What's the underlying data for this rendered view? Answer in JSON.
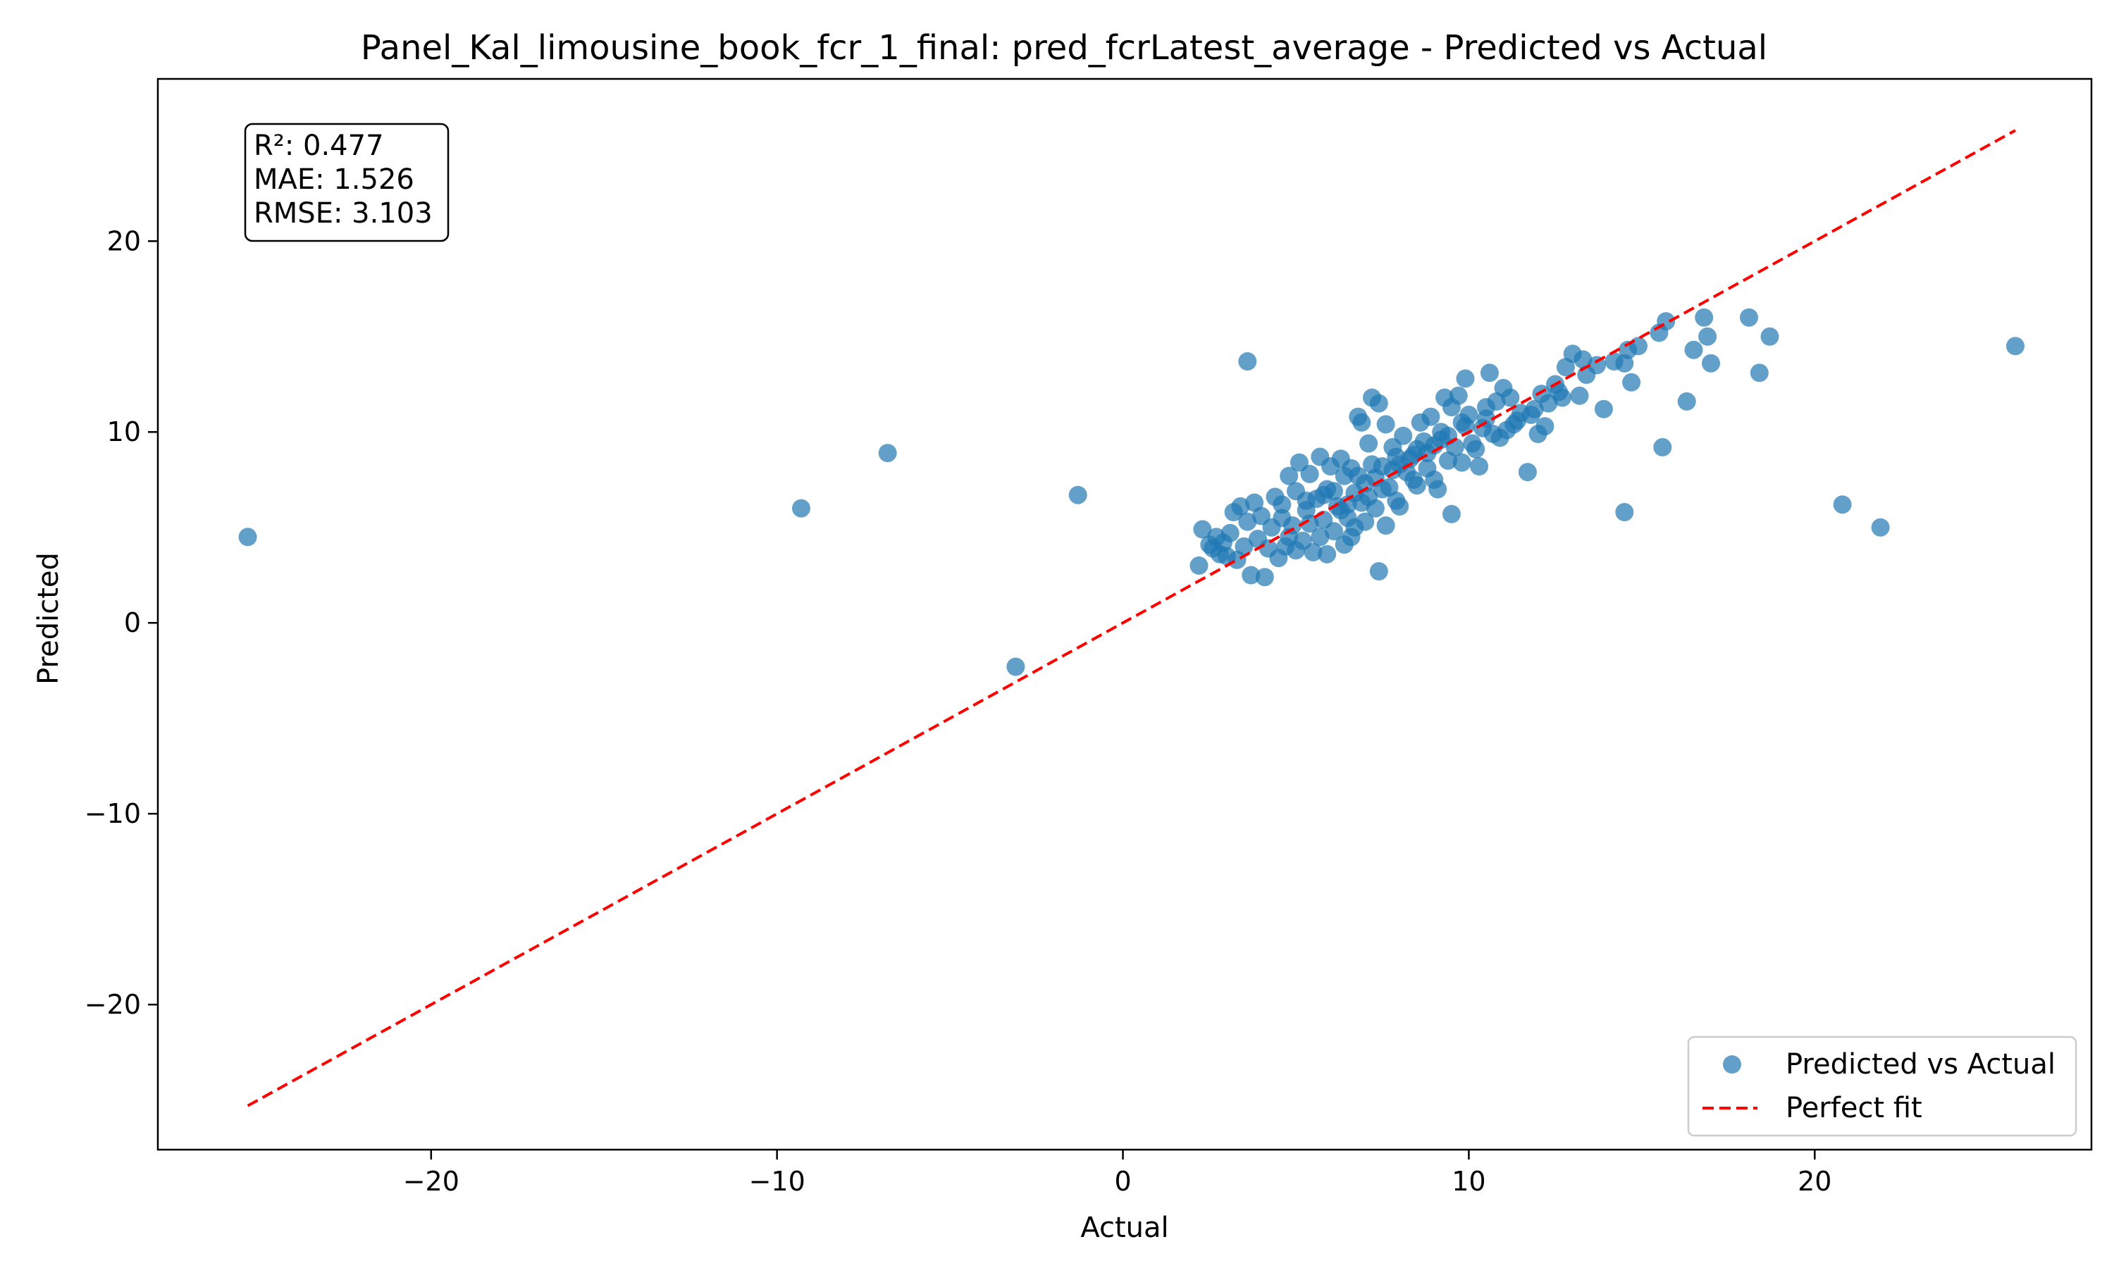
{
  "chart_data": {
    "type": "scatter",
    "title": "Panel_Kal_limousine_book_fcr_1_final: pred_fcrLatest_average - Predicted vs Actual",
    "xlabel": "Actual",
    "ylabel": "Predicted",
    "xlim": [
      -27.9,
      28.0
    ],
    "ylim": [
      -27.6,
      28.5
    ],
    "xticks": [
      -20,
      -10,
      0,
      10,
      20
    ],
    "yticks": [
      -20,
      -10,
      0,
      10,
      20
    ],
    "tick_labels_x": [
      "−20",
      "−10",
      "0",
      "10",
      "20"
    ],
    "tick_labels_y": [
      "−20",
      "−10",
      "0",
      "10",
      "20"
    ],
    "stats": {
      "r2": "R²: 0.477",
      "mae": "MAE: 1.526",
      "rmse": "RMSE: 3.103"
    },
    "legend": {
      "placement": "lower-right",
      "scatter_label": "Predicted vs Actual",
      "line_label": "Perfect fit"
    },
    "colors": {
      "points": "#1f77b4",
      "perfect_fit": "#ff0000"
    },
    "grid": false,
    "perfect_fit_line": {
      "x": [
        -25.3,
        25.8
      ],
      "y": [
        -25.3,
        25.8
      ]
    },
    "series": [
      {
        "points": [
          [
            -25.3,
            4.5
          ],
          [
            -9.3,
            6.0
          ],
          [
            -6.8,
            8.9
          ],
          [
            -1.3,
            6.7
          ],
          [
            -3.1,
            -2.3
          ],
          [
            3.6,
            13.7
          ],
          [
            25.8,
            14.5
          ],
          [
            20.8,
            6.2
          ],
          [
            21.9,
            5.0
          ],
          [
            14.5,
            5.8
          ],
          [
            15.6,
            9.2
          ],
          [
            18.4,
            13.1
          ],
          [
            18.1,
            16.0
          ],
          [
            18.7,
            15.0
          ],
          [
            16.8,
            16.0
          ],
          [
            16.9,
            15.0
          ],
          [
            17.0,
            13.6
          ],
          [
            16.5,
            14.3
          ],
          [
            16.3,
            11.6
          ],
          [
            15.7,
            15.8
          ],
          [
            15.5,
            15.2
          ],
          [
            14.6,
            14.3
          ],
          [
            14.7,
            12.6
          ],
          [
            14.5,
            13.6
          ],
          [
            13.9,
            11.2
          ],
          [
            13.7,
            13.5
          ],
          [
            13.3,
            13.8
          ],
          [
            13.2,
            11.9
          ],
          [
            13.0,
            14.1
          ],
          [
            12.8,
            13.4
          ],
          [
            12.7,
            11.8
          ],
          [
            12.5,
            12.5
          ],
          [
            12.1,
            12.0
          ],
          [
            11.9,
            11.2
          ],
          [
            11.7,
            7.9
          ],
          [
            12.2,
            10.3
          ],
          [
            12.0,
            9.9
          ],
          [
            11.4,
            10.6
          ],
          [
            11.2,
            11.8
          ],
          [
            11.0,
            12.3
          ],
          [
            11.1,
            10.1
          ],
          [
            10.9,
            9.7
          ],
          [
            10.6,
            13.1
          ],
          [
            10.5,
            11.3
          ],
          [
            10.4,
            10.2
          ],
          [
            10.3,
            8.2
          ],
          [
            10.1,
            9.4
          ],
          [
            9.9,
            12.8
          ],
          [
            9.8,
            10.5
          ],
          [
            9.7,
            11.9
          ],
          [
            9.6,
            9.2
          ],
          [
            9.5,
            11.3
          ],
          [
            9.4,
            8.5
          ],
          [
            9.3,
            11.8
          ],
          [
            9.2,
            10.0
          ],
          [
            9.1,
            7.0
          ],
          [
            9.0,
            9.3
          ],
          [
            8.9,
            10.8
          ],
          [
            8.8,
            8.9
          ],
          [
            9.5,
            5.7
          ],
          [
            8.6,
            10.5
          ],
          [
            8.5,
            9.1
          ],
          [
            8.4,
            7.5
          ],
          [
            8.3,
            8.6
          ],
          [
            8.1,
            9.8
          ],
          [
            8.0,
            8.3
          ],
          [
            7.9,
            6.4
          ],
          [
            7.8,
            9.2
          ],
          [
            7.7,
            7.1
          ],
          [
            7.6,
            10.4
          ],
          [
            7.5,
            8.2
          ],
          [
            7.4,
            11.5
          ],
          [
            7.3,
            6.0
          ],
          [
            7.2,
            11.8
          ],
          [
            7.1,
            9.4
          ],
          [
            7.0,
            7.3
          ],
          [
            6.9,
            10.5
          ],
          [
            6.8,
            10.8
          ],
          [
            6.7,
            6.8
          ],
          [
            6.6,
            8.1
          ],
          [
            6.5,
            5.5
          ],
          [
            6.4,
            7.7
          ],
          [
            6.3,
            8.6
          ],
          [
            6.2,
            6.1
          ],
          [
            6.1,
            4.8
          ],
          [
            6.0,
            8.2
          ],
          [
            5.9,
            7.0
          ],
          [
            5.8,
            5.4
          ],
          [
            5.7,
            8.7
          ],
          [
            5.6,
            6.5
          ],
          [
            5.5,
            3.7
          ],
          [
            5.4,
            7.8
          ],
          [
            5.3,
            5.9
          ],
          [
            5.2,
            4.3
          ],
          [
            5.1,
            8.4
          ],
          [
            5.0,
            6.9
          ],
          [
            4.9,
            5.1
          ],
          [
            4.8,
            7.7
          ],
          [
            4.7,
            4.0
          ],
          [
            4.6,
            6.2
          ],
          [
            4.5,
            3.4
          ],
          [
            4.4,
            6.6
          ],
          [
            4.3,
            5.0
          ],
          [
            4.2,
            3.9
          ],
          [
            4.1,
            2.4
          ],
          [
            4.0,
            5.6
          ],
          [
            3.9,
            4.4
          ],
          [
            3.8,
            6.3
          ],
          [
            3.7,
            2.5
          ],
          [
            3.6,
            5.3
          ],
          [
            3.5,
            4.0
          ],
          [
            3.4,
            6.1
          ],
          [
            3.3,
            3.3
          ],
          [
            3.2,
            5.8
          ],
          [
            3.1,
            4.7
          ],
          [
            3.0,
            3.5
          ],
          [
            2.9,
            4.2
          ],
          [
            2.8,
            3.6
          ],
          [
            2.7,
            4.5
          ],
          [
            2.6,
            3.9
          ],
          [
            2.5,
            4.1
          ],
          [
            2.3,
            4.9
          ],
          [
            2.2,
            3.0
          ],
          [
            7.4,
            2.7
          ],
          [
            6.6,
            4.5
          ],
          [
            5.9,
            3.6
          ],
          [
            6.4,
            4.1
          ],
          [
            7.0,
            5.3
          ],
          [
            7.6,
            5.1
          ],
          [
            8.0,
            6.1
          ],
          [
            8.5,
            7.2
          ],
          [
            9.0,
            7.5
          ],
          [
            9.8,
            8.4
          ],
          [
            10.2,
            9.1
          ],
          [
            10.7,
            9.9
          ],
          [
            11.3,
            10.4
          ],
          [
            11.8,
            10.9
          ],
          [
            12.3,
            11.5
          ],
          [
            6.1,
            6.9
          ],
          [
            6.8,
            7.7
          ],
          [
            7.2,
            8.3
          ],
          [
            7.9,
            8.7
          ],
          [
            8.7,
            9.5
          ],
          [
            5.4,
            5.2
          ],
          [
            5.7,
            4.5
          ],
          [
            6.3,
            5.9
          ],
          [
            6.9,
            6.3
          ],
          [
            7.5,
            7.0
          ],
          [
            4.8,
            4.5
          ],
          [
            5.0,
            3.8
          ],
          [
            5.3,
            6.4
          ],
          [
            6.7,
            5.0
          ],
          [
            7.1,
            6.6
          ],
          [
            8.2,
            7.9
          ],
          [
            8.8,
            8.1
          ],
          [
            9.4,
            9.8
          ],
          [
            10.0,
            10.9
          ],
          [
            10.8,
            11.6
          ],
          [
            4.6,
            5.5
          ],
          [
            5.8,
            6.7
          ],
          [
            6.5,
            6.2
          ],
          [
            7.3,
            7.6
          ],
          [
            7.8,
            8.0
          ],
          [
            8.4,
            8.8
          ],
          [
            9.2,
            9.6
          ],
          [
            9.9,
            10.3
          ],
          [
            10.5,
            10.7
          ],
          [
            11.5,
            11.0
          ],
          [
            12.6,
            12.1
          ],
          [
            13.4,
            13.0
          ],
          [
            14.2,
            13.7
          ],
          [
            14.9,
            14.5
          ]
        ]
      }
    ]
  }
}
